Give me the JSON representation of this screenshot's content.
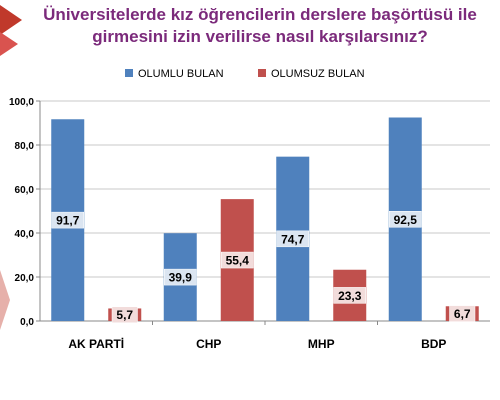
{
  "title": "Üniversitelerde kız öğrencilerin derslere başörtüsü ile girmesini izin verilirse nasıl karşılarsınız?",
  "chart_data": {
    "type": "bar",
    "title": "Üniversitelerde kız öğrencilerin derslere başörtüsü ile girmesini izin verilirse nasıl karşılarsınız?",
    "categories": [
      "AK PARTİ",
      "CHP",
      "MHP",
      "BDP"
    ],
    "series": [
      {
        "name": "OLUMLU BULAN",
        "values": [
          91.7,
          39.9,
          74.7,
          92.5
        ],
        "labels": [
          "91,7",
          "39,9",
          "74,7",
          "92,5"
        ],
        "color": "#4f81bd"
      },
      {
        "name": "OLUMSUZ BULAN",
        "values": [
          5.7,
          55.4,
          23.3,
          6.7
        ],
        "labels": [
          "5,7",
          "55,4",
          "23,3",
          "6,7"
        ],
        "color": "#c0504d"
      }
    ],
    "yticks": [
      "0,0",
      "20,0",
      "40,0",
      "60,0",
      "80,0",
      "100,0"
    ],
    "ylim": [
      0,
      100
    ],
    "grid": true,
    "legend_position": "top-center"
  },
  "colors": {
    "title": "#7b2a7b",
    "accent": "#c0392b"
  }
}
